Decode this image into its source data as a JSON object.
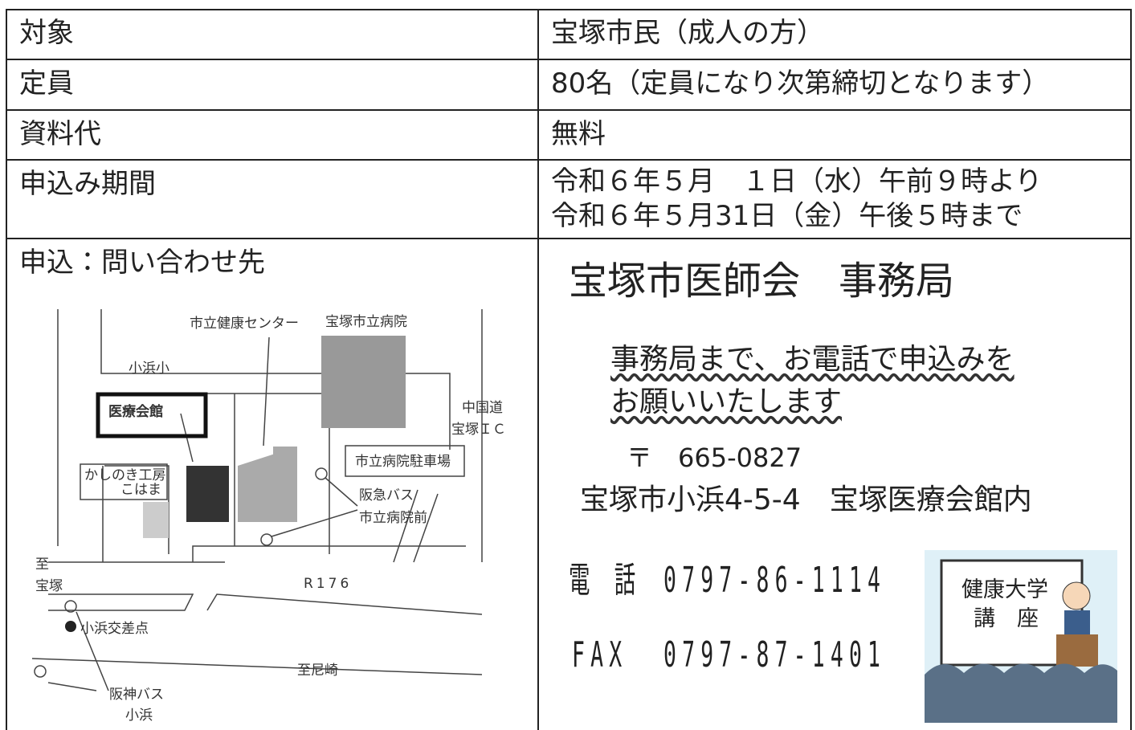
{
  "table": {
    "rows": [
      [
        "対象",
        "宝塚市民（成人の方）"
      ],
      [
        "定員",
        "80名（定員になり次第締切となります）"
      ],
      [
        "資料代",
        "無料"
      ],
      [
        "申込み期間",
        [
          "令和６年５月　１日（水）午前９時より",
          "令和６年５月31日（金）午後５時まで"
        ]
      ]
    ]
  },
  "contact": {
    "label": "申込：問い合わせ先",
    "org": "宝塚市医師会　事務局",
    "note": [
      "事務局まで、お電話で申込みを",
      "お願いいたします"
    ],
    "postal": "〒　665-0827",
    "address": "宝塚市小浜4-5-4　宝塚医療会館内",
    "phone_label": "電 話",
    "phone": "0797-86-1114",
    "fax_label": "FAX",
    "fax": "0797-87-1401",
    "poster": [
      "健康大学",
      "講　座"
    ]
  },
  "map": {
    "labels": [
      "市立健康センター",
      "宝塚市立病院",
      "小浜小",
      "医療会館",
      "中国道",
      "宝塚ＩＣ",
      "市立病院駐車場",
      "かしのき工房",
      "こはま",
      "阪急バス",
      "市立病院前",
      "至",
      "宝塚",
      "R176",
      "小浜交差点",
      "至尼崎",
      "阪神バス",
      "小浜"
    ]
  }
}
